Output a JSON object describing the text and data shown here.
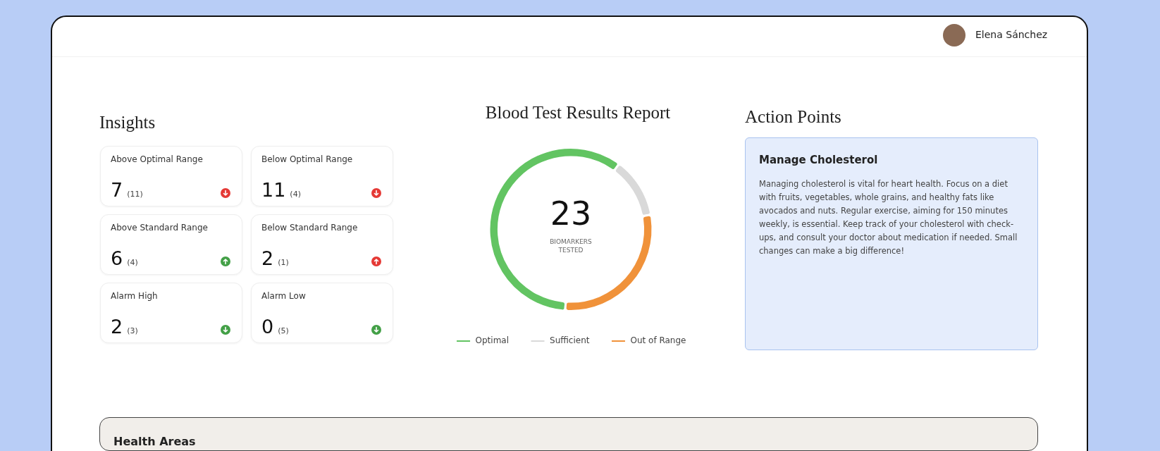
{
  "chart_data": [
    {
      "type": "other",
      "annotations": [
        "Elena Sánchez"
      ]
    },
    {
      "type": "other",
      "title": "Insights",
      "annotations": [
        "Above Optimal Range",
        "7",
        "(11)",
        "Below Optimal Range",
        "11",
        "(4)",
        "Above Standard Range",
        "6",
        "(4)",
        "Below Standard Range",
        "2",
        "(1)",
        "Alarm High",
        "2",
        "(3)",
        "Alarm Low",
        "0",
        "(5)"
      ]
    },
    {
      "type": "donut",
      "title": "Blood Test Results Report",
      "categories": [
        "Optimal",
        "Sufficient",
        "Out of Range"
      ],
      "values": [
        59,
        12,
        29
      ],
      "colors": [
        "#62c462",
        "#d9d9d9",
        "#f0923a"
      ],
      "legend": "bottom",
      "annotations": [
        "23",
        "BIOMARKERS TESTED"
      ]
    },
    {
      "type": "other",
      "title": "Action Points",
      "annotations": [
        "Manage Cholesterol",
        "Managing cholesterol is vital for heart health. Focus on a diet with fruits, vegetables, whole grains, and healthy fats like avocados and nuts. Regular exercise, aiming for 150 minutes weekly, is essential. Keep track of your cholesterol with check-ups, and consult your doctor about medication if needed. Small changes can make a big difference!"
      ]
    },
    {
      "type": "other",
      "title": "Health Areas"
    }
  ]
}
